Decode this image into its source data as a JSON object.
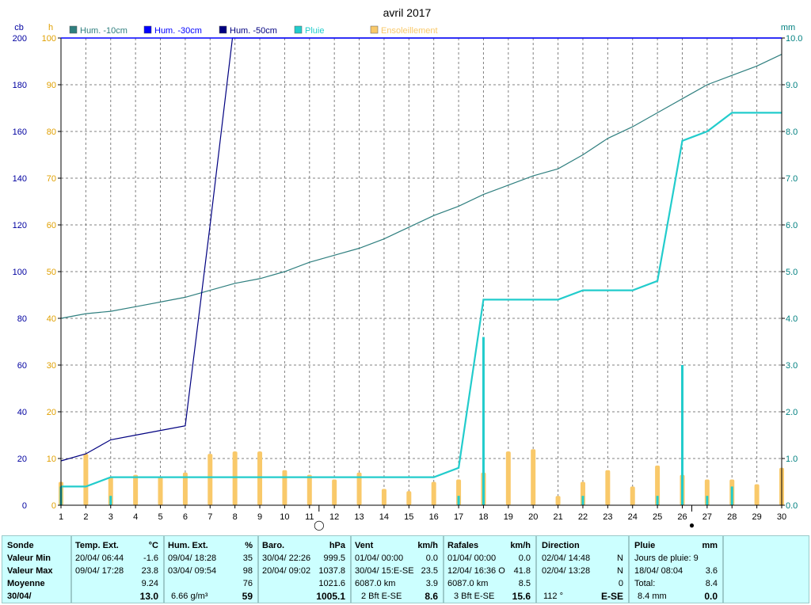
{
  "chart_data": {
    "type": "line",
    "title": "avril 2017",
    "left_axis_unit": "cb",
    "left_axis_ylim": [
      0,
      200
    ],
    "left_axis_ticks": [
      "0",
      "20",
      "40",
      "60",
      "80",
      "100",
      "120",
      "140",
      "160",
      "180",
      "200"
    ],
    "mid_axis_unit": "h",
    "mid_axis_ylim": [
      0,
      100
    ],
    "mid_axis_ticks": [
      "0",
      "10",
      "20",
      "30",
      "40",
      "50",
      "60",
      "70",
      "80",
      "90",
      "100"
    ],
    "right_axis_unit": "mm",
    "right_axis_ylim": [
      0,
      10
    ],
    "right_axis_ticks": [
      "0.0",
      "1.0",
      "2.0",
      "3.0",
      "4.0",
      "5.0",
      "6.0",
      "7.0",
      "8.0",
      "9.0",
      "10.0"
    ],
    "x": [
      1,
      2,
      3,
      4,
      5,
      6,
      7,
      8,
      9,
      10,
      11,
      12,
      13,
      14,
      15,
      16,
      17,
      18,
      19,
      20,
      21,
      22,
      23,
      24,
      25,
      26,
      27,
      28,
      29,
      30
    ],
    "x_tick_labels": [
      "1",
      "2",
      "3",
      "4",
      "5",
      "6",
      "7",
      "8",
      "9",
      "10",
      "11",
      "12",
      "13",
      "14",
      "15",
      "16",
      "17",
      "18",
      "19",
      "20",
      "21",
      "22",
      "23",
      "24",
      "25",
      "26",
      "27",
      "28",
      "29",
      "30"
    ],
    "grid": true,
    "legend_position": "top",
    "colors": {
      "hum10": "#2f7f7f",
      "hum30": "#0000ff",
      "hum50": "#000080",
      "pluie": "#22cccc",
      "sun": "#f9c96a",
      "grid": "#808080",
      "axis_left": "#0000a0",
      "axis_mid": "#e0a000",
      "axis_right": "#008080"
    },
    "series": [
      {
        "name": "Hum. -10cm",
        "key": "hum10",
        "axis": "left",
        "values": [
          80,
          82,
          83,
          85,
          87,
          89,
          92,
          95,
          97,
          100,
          104,
          107,
          110,
          114,
          119,
          124,
          128,
          133,
          137,
          141,
          144,
          150,
          157,
          162,
          168,
          174,
          180,
          184,
          188,
          193
        ]
      },
      {
        "name": "Hum. -30cm",
        "key": "hum30",
        "axis": "left",
        "values": [
          null,
          null,
          null,
          null,
          null,
          null,
          null,
          null,
          null,
          null,
          null,
          null,
          null,
          null,
          null,
          null,
          null,
          null,
          null,
          null,
          null,
          null,
          null,
          null,
          null,
          null,
          null,
          null,
          null,
          null
        ]
      },
      {
        "name": "Hum. -50cm",
        "key": "hum50",
        "axis": "left",
        "x": [
          1,
          2,
          3,
          4,
          5,
          6,
          7,
          7.9,
          8,
          30
        ],
        "values": [
          19,
          22,
          28,
          30,
          32,
          34,
          120,
          200,
          200,
          200
        ]
      },
      {
        "name": "Pluie",
        "key": "pluie",
        "axis": "right",
        "kind": "cumulative",
        "values": [
          0.4,
          0.4,
          0.6,
          0.6,
          0.6,
          0.6,
          0.6,
          0.6,
          0.6,
          0.6,
          0.6,
          0.6,
          0.6,
          0.6,
          0.6,
          0.6,
          0.8,
          4.4,
          4.4,
          4.4,
          4.4,
          4.6,
          4.6,
          4.6,
          4.8,
          7.8,
          8.0,
          8.4,
          8.4,
          8.4
        ]
      },
      {
        "name": "Pluie",
        "key": "pluie_daily",
        "axis": "right",
        "kind": "daily_bars",
        "values": [
          0.4,
          0,
          0.2,
          0,
          0,
          0,
          0,
          0,
          0,
          0,
          0,
          0,
          0,
          0,
          0,
          0,
          0.2,
          3.6,
          0,
          0,
          0,
          0.2,
          0,
          0,
          0.2,
          3.0,
          0.2,
          0.4,
          0,
          0
        ]
      },
      {
        "name": "Ensoleillement",
        "key": "sun",
        "axis": "mid",
        "kind": "bars",
        "values": [
          5,
          11,
          6,
          6.5,
          6,
          7,
          11,
          11.5,
          11.5,
          7.5,
          6.5,
          5.5,
          7,
          3.5,
          3,
          5,
          5.5,
          7,
          11.5,
          12,
          2,
          5,
          7.5,
          4,
          8.5,
          6.5,
          5.5,
          5.5,
          4.5,
          8
        ]
      }
    ]
  },
  "moon_markers": [
    {
      "day": 11,
      "label": "◯"
    },
    {
      "day": 26,
      "label": "●"
    }
  ],
  "panel": {
    "sonde": {
      "title": "Sonde",
      "rows": [
        "Valeur Min",
        "Valeur Max",
        "Moyenne",
        "30/04/"
      ]
    },
    "temp": {
      "title": "Temp. Ext.",
      "unit": "°C",
      "min_date": "20/04/  06:44",
      "min_val": "-1.6",
      "max_date": "09/04/  17:28",
      "max_val": "23.8",
      "moy": "9.24",
      "last": "13.0"
    },
    "hum": {
      "title": "Hum. Ext.",
      "unit": "%",
      "min_date": "09/04/  18:28",
      "min_val": "35",
      "max_date": "03/04/  09:54",
      "max_val": "98",
      "moy": "76",
      "last_note": "6.66 g/m³",
      "last": "59"
    },
    "baro": {
      "title": "Baro.",
      "unit": "hPa",
      "min_date": "30/04/  22:26",
      "min_val": "999.5",
      "max_date": "20/04/  09:02",
      "max_val": "1037.8",
      "moy": "1021.6",
      "last": "1005.1"
    },
    "vent": {
      "title": "Vent",
      "unit": "km/h",
      "min_date": "01/04/  00:00",
      "min_val": "0.0",
      "max_date": "30/04/  15:E-SE",
      "max_val": "23.5",
      "moy_note": "6087.0 km",
      "moy": "3.9",
      "last_note": "2 Bft E-SE",
      "last": "8.6"
    },
    "rafales": {
      "title": "Rafales",
      "unit": "km/h",
      "min_date": "01/04/  00:00",
      "min_val": "0.0",
      "max_date": "12/04/  16:36  O",
      "max_val": "41.8",
      "moy_note": "6087.0 km",
      "moy": "8.5",
      "last_note": "3 Bft E-SE",
      "last": "15.6"
    },
    "direction": {
      "title": "Direction",
      "min_date": "02/04/  14:48",
      "min_val": "N",
      "max_date": "02/04/  13:28",
      "max_val": "N",
      "moy": "0",
      "last_note": "112 °",
      "last": "E-SE"
    },
    "pluie": {
      "title": "Pluie",
      "unit": "mm",
      "jours": "Jours de pluie: 9",
      "max_date": "18/04/  08:04",
      "max_val": "3.6",
      "total_label": "Total:",
      "total": "8.4",
      "last_note": "8.4 mm",
      "last": "0.0"
    }
  }
}
